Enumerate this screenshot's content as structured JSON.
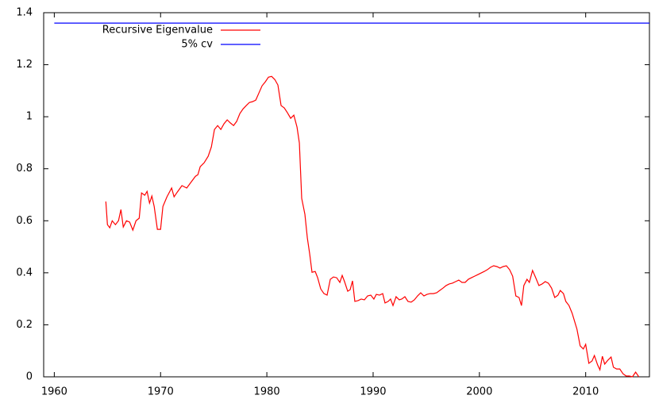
{
  "chart_data": {
    "type": "line",
    "xlim": [
      1959,
      2016
    ],
    "ylim": [
      0,
      1.4
    ],
    "xticks": [
      1960,
      1970,
      1980,
      1990,
      2000,
      2010
    ],
    "yticks": [
      0,
      0.2,
      0.4,
      0.6,
      0.8,
      1,
      1.2,
      1.4
    ],
    "legend": "top-left",
    "series": [
      {
        "name": "Recursive Eigenvalue",
        "color": "#ff0000",
        "x": [
          1964.85,
          1965.0,
          1965.22,
          1965.45,
          1965.75,
          1966.04,
          1966.27,
          1966.49,
          1966.79,
          1967.09,
          1967.39,
          1967.69,
          1967.99,
          1968.21,
          1968.51,
          1968.73,
          1968.96,
          1969.18,
          1969.4,
          1969.7,
          1970.0,
          1970.22,
          1970.6,
          1971.04,
          1971.27,
          1971.57,
          1972.01,
          1972.46,
          1972.84,
          1973.28,
          1973.51,
          1973.73,
          1974.1,
          1974.48,
          1974.78,
          1975.07,
          1975.37,
          1975.67,
          1975.97,
          1976.27,
          1976.57,
          1976.87,
          1977.16,
          1977.46,
          1977.76,
          1978.06,
          1978.36,
          1978.66,
          1978.96,
          1979.25,
          1979.55,
          1979.85,
          1980.15,
          1980.45,
          1980.75,
          1981.04,
          1981.34,
          1981.64,
          1981.94,
          1982.24,
          1982.54,
          1982.84,
          1983.06,
          1983.28,
          1983.58,
          1983.81,
          1984.03,
          1984.25,
          1984.55,
          1984.78,
          1985.07,
          1985.37,
          1985.67,
          1985.97,
          1986.27,
          1986.57,
          1986.87,
          1987.09,
          1987.31,
          1987.61,
          1987.84,
          1988.06,
          1988.28,
          1988.58,
          1988.88,
          1989.18,
          1989.48,
          1989.78,
          1990.07,
          1990.3,
          1990.6,
          1990.9,
          1991.12,
          1991.42,
          1991.64,
          1991.87,
          1992.16,
          1992.46,
          1992.69,
          1992.99,
          1993.28,
          1993.58,
          1993.88,
          1994.18,
          1994.48,
          1994.78,
          1995.07,
          1995.37,
          1995.67,
          1995.97,
          1996.27,
          1996.57,
          1996.87,
          1997.16,
          1997.46,
          1997.76,
          1998.06,
          1998.36,
          1998.66,
          1998.96,
          1999.25,
          1999.55,
          1999.85,
          2000.15,
          2000.45,
          2000.75,
          2001.04,
          2001.34,
          2001.64,
          2001.94,
          2002.24,
          2002.54,
          2002.84,
          2003.13,
          2003.43,
          2003.73,
          2003.96,
          2004.18,
          2004.48,
          2004.7,
          2005.0,
          2005.3,
          2005.6,
          2005.9,
          2006.19,
          2006.49,
          2006.79,
          2007.09,
          2007.39,
          2007.61,
          2007.91,
          2008.13,
          2008.43,
          2008.73,
          2008.96,
          2009.18,
          2009.48,
          2009.78,
          2010.0,
          2010.3,
          2010.6,
          2010.82,
          2011.12,
          2011.34,
          2011.57,
          2011.79,
          2012.09,
          2012.39,
          2012.61,
          2012.91,
          2013.21,
          2013.51,
          2013.81,
          2014.1,
          2014.4,
          2014.7,
          2015.0
        ],
        "values": [
          0.674,
          0.585,
          0.573,
          0.6,
          0.585,
          0.6,
          0.643,
          0.576,
          0.6,
          0.595,
          0.564,
          0.6,
          0.61,
          0.707,
          0.698,
          0.713,
          0.668,
          0.695,
          0.655,
          0.567,
          0.567,
          0.655,
          0.692,
          0.726,
          0.692,
          0.71,
          0.735,
          0.726,
          0.747,
          0.771,
          0.777,
          0.808,
          0.823,
          0.848,
          0.884,
          0.951,
          0.966,
          0.951,
          0.973,
          0.988,
          0.976,
          0.966,
          0.982,
          1.012,
          1.03,
          1.043,
          1.055,
          1.058,
          1.064,
          1.091,
          1.119,
          1.134,
          1.152,
          1.155,
          1.143,
          1.122,
          1.043,
          1.034,
          1.015,
          0.994,
          1.006,
          0.96,
          0.899,
          0.686,
          0.625,
          0.534,
          0.473,
          0.402,
          0.405,
          0.381,
          0.338,
          0.32,
          0.314,
          0.375,
          0.384,
          0.381,
          0.363,
          0.39,
          0.366,
          0.329,
          0.335,
          0.369,
          0.29,
          0.293,
          0.299,
          0.296,
          0.311,
          0.314,
          0.299,
          0.317,
          0.314,
          0.32,
          0.284,
          0.29,
          0.299,
          0.274,
          0.308,
          0.296,
          0.299,
          0.308,
          0.29,
          0.287,
          0.296,
          0.311,
          0.323,
          0.311,
          0.317,
          0.32,
          0.32,
          0.323,
          0.332,
          0.341,
          0.351,
          0.357,
          0.36,
          0.366,
          0.372,
          0.363,
          0.363,
          0.375,
          0.381,
          0.387,
          0.393,
          0.399,
          0.405,
          0.412,
          0.421,
          0.427,
          0.424,
          0.418,
          0.424,
          0.427,
          0.412,
          0.387,
          0.311,
          0.305,
          0.274,
          0.351,
          0.375,
          0.363,
          0.409,
          0.381,
          0.351,
          0.357,
          0.366,
          0.36,
          0.341,
          0.305,
          0.314,
          0.332,
          0.32,
          0.29,
          0.274,
          0.244,
          0.213,
          0.183,
          0.119,
          0.107,
          0.125,
          0.052,
          0.061,
          0.082,
          0.046,
          0.027,
          0.079,
          0.049,
          0.064,
          0.076,
          0.037,
          0.03,
          0.03,
          0.012,
          0.003,
          0.003,
          0,
          0.018,
          0
        ]
      },
      {
        "name": "5% cv",
        "color": "#0000ff",
        "x": [
          1960,
          2016
        ],
        "values": [
          1.36,
          1.36
        ]
      }
    ]
  }
}
